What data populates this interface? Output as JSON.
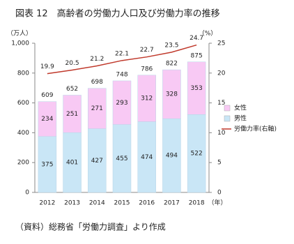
{
  "chart_data": {
    "type": "bar",
    "title": "図表 12　高齢者の労働力人口及び労働力率の推移",
    "y_unit": "（万人）",
    "y2_unit": "（%）",
    "x_unit": "（年）",
    "categories": [
      "2012",
      "2013",
      "2014",
      "2015",
      "2016",
      "2017",
      "2018"
    ],
    "series": [
      {
        "name": "男性",
        "color": "#c9e6f6",
        "type": "bar",
        "values": [
          375,
          401,
          427,
          455,
          474,
          494,
          522
        ]
      },
      {
        "name": "女性",
        "color": "#f8c9f4",
        "type": "bar",
        "values": [
          234,
          251,
          271,
          293,
          312,
          328,
          353
        ]
      },
      {
        "name": "労働力率(右軸)",
        "color": "#c0392b",
        "type": "line",
        "axis": "y2",
        "values": [
          19.9,
          20.5,
          21.2,
          22.1,
          22.7,
          23.5,
          24.7
        ]
      }
    ],
    "totals": [
      609,
      652,
      698,
      748,
      786,
      822,
      875
    ],
    "ylim": [
      0,
      1000
    ],
    "yticks": [
      0,
      200,
      400,
      600,
      800,
      {
        "value": 1000,
        "label": "1,000"
      }
    ],
    "y2lim": [
      0,
      25
    ],
    "y2ticks": [
      0,
      5,
      10,
      15,
      20,
      25
    ],
    "legend": "right",
    "grid": false,
    "source": "（資料）総務省「労働力調査」より作成"
  }
}
